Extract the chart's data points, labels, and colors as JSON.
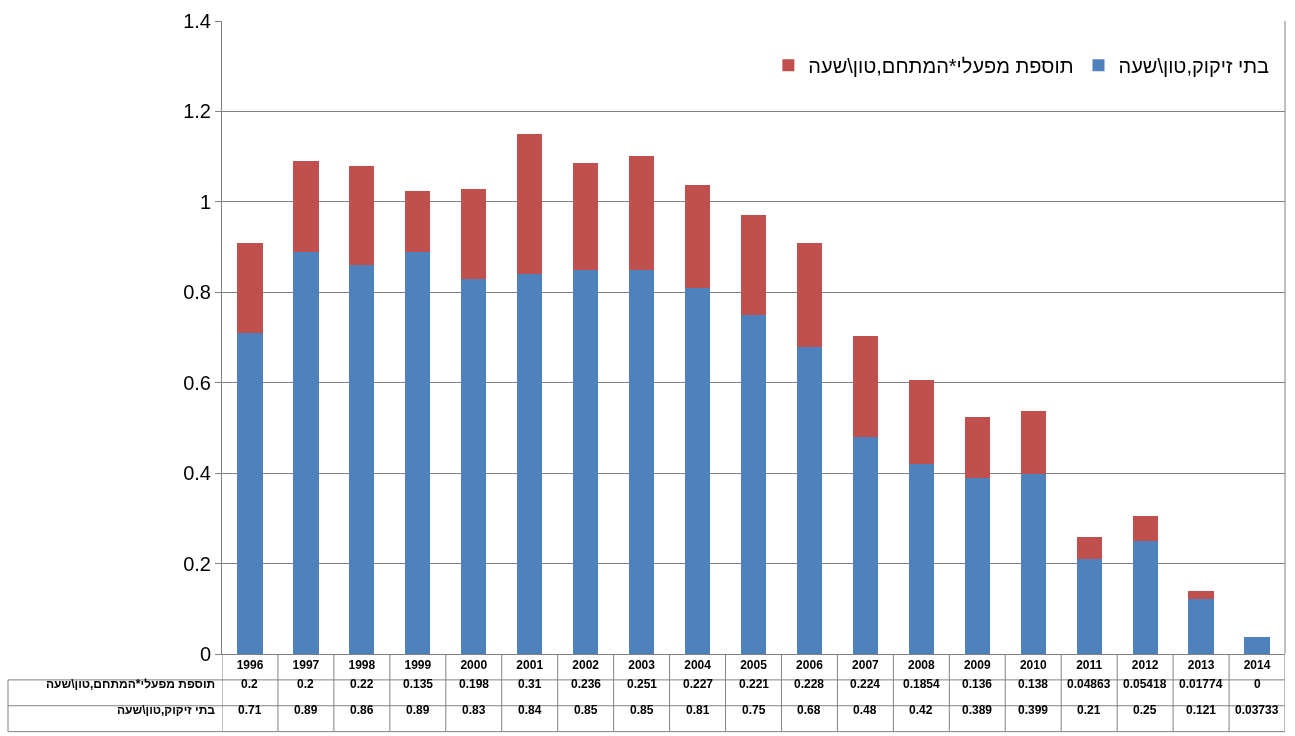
{
  "chart_data": {
    "type": "bar",
    "stacked": true,
    "categories": [
      "1996",
      "1997",
      "1998",
      "1999",
      "2000",
      "2001",
      "2002",
      "2003",
      "2004",
      "2005",
      "2006",
      "2007",
      "2008",
      "2009",
      "2010",
      "2011",
      "2012",
      "2013",
      "2014"
    ],
    "series": [
      {
        "name": "בתי זיקוק,טון\\שעה",
        "color": "#4f81bd",
        "values": [
          0.71,
          0.89,
          0.86,
          0.89,
          0.83,
          0.84,
          0.85,
          0.85,
          0.81,
          0.75,
          0.68,
          0.48,
          0.42,
          0.389,
          0.399,
          0.21,
          0.25,
          0.121,
          0.03733
        ]
      },
      {
        "name": "תוספת מפעלי*המתחם,טון\\שעה",
        "color": "#c0504d",
        "values": [
          0.2,
          0.2,
          0.22,
          0.135,
          0.198,
          0.31,
          0.236,
          0.251,
          0.227,
          0.221,
          0.228,
          0.224,
          0.1854,
          0.136,
          0.138,
          0.04863,
          0.05418,
          0.01774,
          0
        ]
      }
    ],
    "ylim": [
      0,
      1.4
    ],
    "yticks": [
      0,
      0.2,
      0.4,
      0.6,
      0.8,
      1,
      1.2,
      1.4
    ],
    "grid": "y",
    "legend": "top right",
    "data_labels": true
  }
}
